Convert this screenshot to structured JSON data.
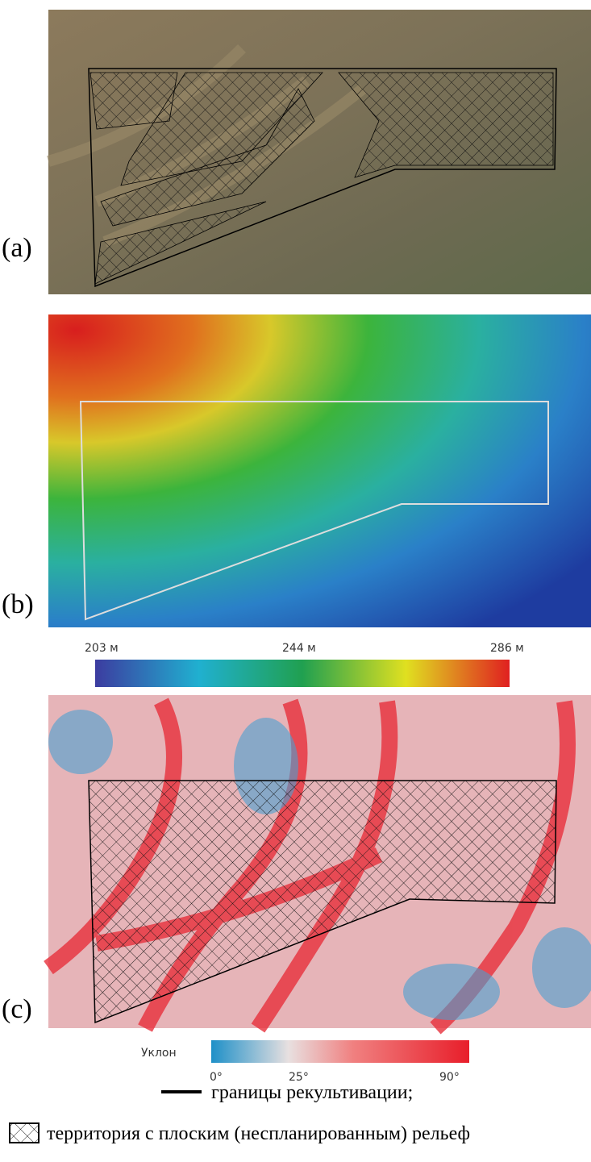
{
  "panels": [
    {
      "label": "(a)"
    },
    {
      "label": "(b)"
    },
    {
      "label": "(c)"
    }
  ],
  "elevation_scale": {
    "labels": [
      "203 м",
      "244 м",
      "286 м"
    ]
  },
  "slope_scale": {
    "title": "Уклон",
    "labels": [
      "0°",
      "25°",
      "90°"
    ]
  },
  "legend": {
    "items": [
      "границы рекультивации;",
      "территория с плоским (неспланированным) рельеф"
    ]
  }
}
